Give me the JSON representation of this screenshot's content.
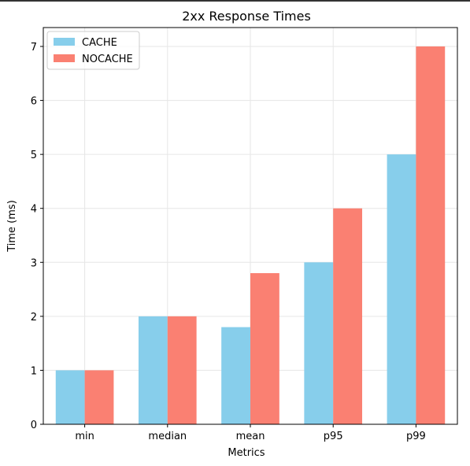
{
  "chart_data": {
    "type": "bar",
    "title": "2xx Response Times",
    "xlabel": "Metrics",
    "ylabel": "Time (ms)",
    "categories": [
      "min",
      "median",
      "mean",
      "p95",
      "p99"
    ],
    "series": [
      {
        "name": "CACHE",
        "values": [
          1,
          2,
          1.8,
          3,
          5
        ],
        "color": "#87ceeb"
      },
      {
        "name": "NOCACHE",
        "values": [
          1,
          2,
          2.8,
          4,
          7
        ],
        "color": "#fa8072"
      }
    ],
    "ylim": [
      0,
      7.35
    ],
    "yticks": [
      0,
      1,
      2,
      3,
      4,
      5,
      6,
      7
    ],
    "grid": true,
    "legend_position": "top-left"
  }
}
